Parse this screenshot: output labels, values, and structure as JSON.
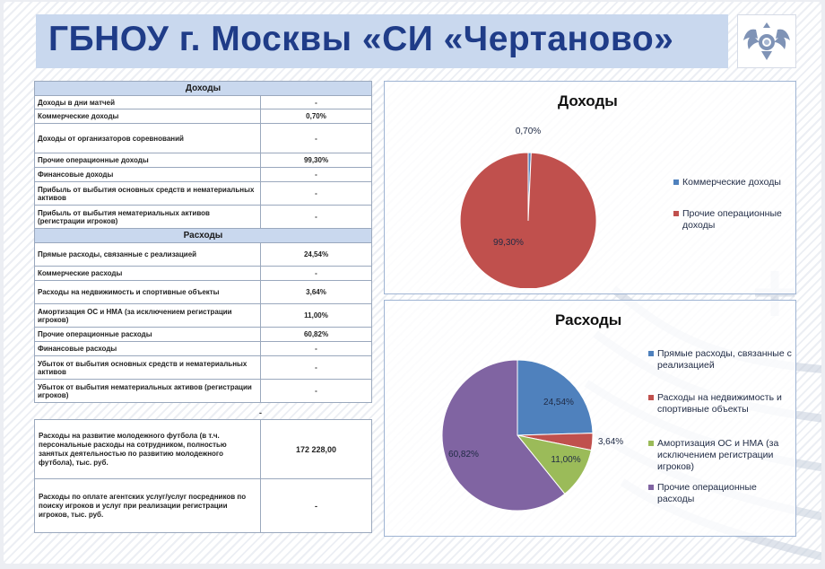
{
  "header": {
    "title": "ГБНОУ г. Москвы «СИ «Чертаново»"
  },
  "income_table": {
    "header": "Доходы",
    "rows": [
      {
        "label": "Доходы в дни матчей",
        "value": "-"
      },
      {
        "label": "Коммерческие доходы",
        "value": "0,70%"
      },
      {
        "label": "Доходы от организаторов соревнований",
        "value": "-"
      },
      {
        "label": "Прочие операционные доходы",
        "value": "99,30%"
      },
      {
        "label": "Финансовые доходы",
        "value": "-"
      },
      {
        "label": "Прибыль от выбытия основных средств и нематериальных активов",
        "value": "-"
      },
      {
        "label": "Прибыль от выбытия нематериальных активов (регистрации игроков)",
        "value": "-"
      }
    ]
  },
  "expense_table": {
    "header": "Расходы",
    "rows": [
      {
        "label": "Прямые расходы, связанные с реализацией",
        "value": "24,54%"
      },
      {
        "label": "Коммерческие расходы",
        "value": "-"
      },
      {
        "label": "Расходы на недвижимость и спортивные объекты",
        "value": "3,64%"
      },
      {
        "label": "Амортизация ОС и НМА (за исключением регистрации игроков)",
        "value": "11,00%"
      },
      {
        "label": "Прочие операционные расходы",
        "value": "60,82%"
      },
      {
        "label": "Финансовые расходы",
        "value": "-"
      },
      {
        "label": "Убыток от выбытия основных средств и нематериальных активов",
        "value": "-"
      },
      {
        "label": "Убыток от выбытия нематериальных активов (регистрации игроков)",
        "value": "-"
      }
    ],
    "separator": "-"
  },
  "youth_table": {
    "rows": [
      {
        "label": "Расходы на развитие молодежного футбола (в т.ч. персональные расходы на сотрудником, полностью занятых деятельностью по развитию молодежного футбола), тыс. руб.",
        "value": "172 228,00"
      },
      {
        "label": "Расходы по оплате агентских услуг/услуг посредников по поиску игроков и услуг при реализации регистрации игроков, тыс. руб.",
        "value": "-"
      }
    ]
  },
  "chart_data": [
    {
      "type": "pie",
      "title": "Доходы",
      "categories": [
        "Коммерческие доходы",
        "Прочие операционные доходы"
      ],
      "values": [
        0.7,
        99.3
      ],
      "labels": [
        "0,70%",
        "99,30%"
      ],
      "colors": [
        "#4f81bd",
        "#c0504d"
      ],
      "legend": "right"
    },
    {
      "type": "pie",
      "title": "Расходы",
      "categories": [
        "Прямые расходы, связанные с реализацией",
        "Расходы на недвижимость и спортивные объекты",
        "Амортизация ОС и НМА (за исключением регистрации игроков)",
        "Прочие операционные расходы"
      ],
      "values": [
        24.54,
        3.64,
        11.0,
        60.82
      ],
      "labels": [
        "24,54%",
        "3,64%",
        "11,00%",
        "60,82%"
      ],
      "colors": [
        "#4f81bd",
        "#c0504d",
        "#9bbb59",
        "#8064a2"
      ],
      "legend": "right"
    }
  ]
}
